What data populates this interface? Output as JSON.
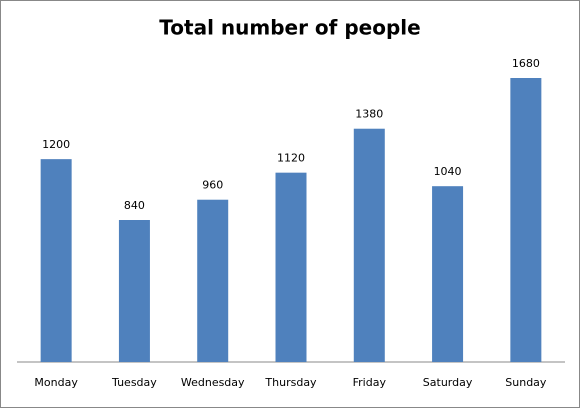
{
  "chart_data": {
    "type": "bar",
    "title": "Total number of people",
    "categories": [
      "Monday",
      "Tuesday",
      "Wednesday",
      "Thursday",
      "Friday",
      "Saturday",
      "Sunday"
    ],
    "values": [
      1200,
      840,
      960,
      1120,
      1380,
      1040,
      1680
    ],
    "color": "#4f81bd"
  }
}
